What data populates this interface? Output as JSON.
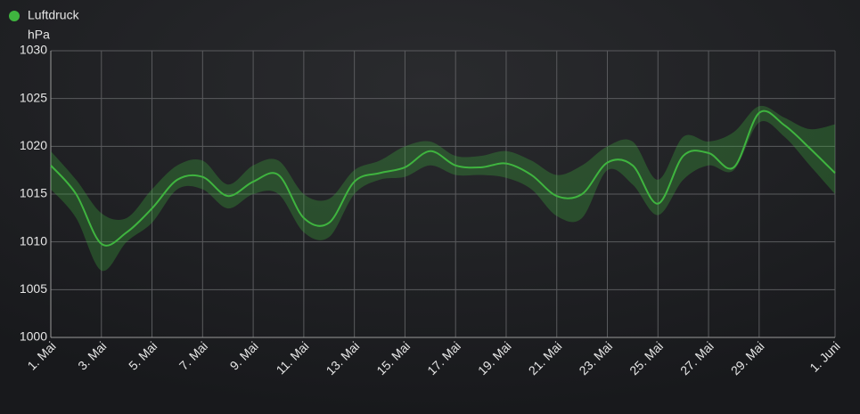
{
  "chart_data": {
    "type": "line-band",
    "y_label": "hPa",
    "categories": [
      "1. Mai",
      null,
      "3. Mai",
      null,
      "5. Mai",
      null,
      "7. Mai",
      null,
      "9. Mai",
      null,
      "11. Mai",
      null,
      "13. Mai",
      null,
      "15. Mai",
      null,
      "17. Mai",
      null,
      "19. Mai",
      null,
      "21. Mai",
      null,
      "23. Mai",
      null,
      "25. Mai",
      null,
      "27. Mai",
      null,
      "29. Mai",
      null,
      null,
      "1. Juni"
    ],
    "series": [
      {
        "name": "Luftdruck",
        "color": "#3fb43f",
        "values": [
          1018,
          1015,
          1009.8,
          1011,
          1013.5,
          1016.5,
          1016.8,
          1014.8,
          1016.3,
          1017,
          1012.5,
          1012,
          1016.3,
          1017.2,
          1017.8,
          1019.5,
          1018,
          1017.8,
          1018.2,
          1017,
          1014.8,
          1015,
          1018.3,
          1018,
          1014,
          1019,
          1019.3,
          1017.8,
          1023.5,
          1022.2,
          1019.8,
          1017.2
        ],
        "high": [
          1019.5,
          1016.5,
          1013,
          1012.5,
          1015.5,
          1018,
          1018.5,
          1016,
          1018,
          1018.5,
          1015,
          1014.5,
          1017.5,
          1018.5,
          1020,
          1020.5,
          1019,
          1019,
          1019.5,
          1018.5,
          1017,
          1018,
          1020,
          1020.5,
          1016.5,
          1021,
          1020.5,
          1021.5,
          1024.2,
          1023,
          1021.8,
          1022.3
        ],
        "low": [
          1015.5,
          1012.5,
          1007,
          1010,
          1012,
          1015.5,
          1015.5,
          1013.5,
          1015,
          1015,
          1011,
          1010.5,
          1015,
          1016.5,
          1016.8,
          1018,
          1017,
          1017,
          1016.7,
          1015.5,
          1012.7,
          1012.5,
          1017.5,
          1016,
          1012.8,
          1016.5,
          1018,
          1017.5,
          1022.5,
          1021,
          1018,
          1015
        ]
      }
    ],
    "ylim": [
      1000,
      1030
    ],
    "yticks": [
      1000,
      1005,
      1010,
      1015,
      1020,
      1025,
      1030
    ],
    "grid": true
  }
}
